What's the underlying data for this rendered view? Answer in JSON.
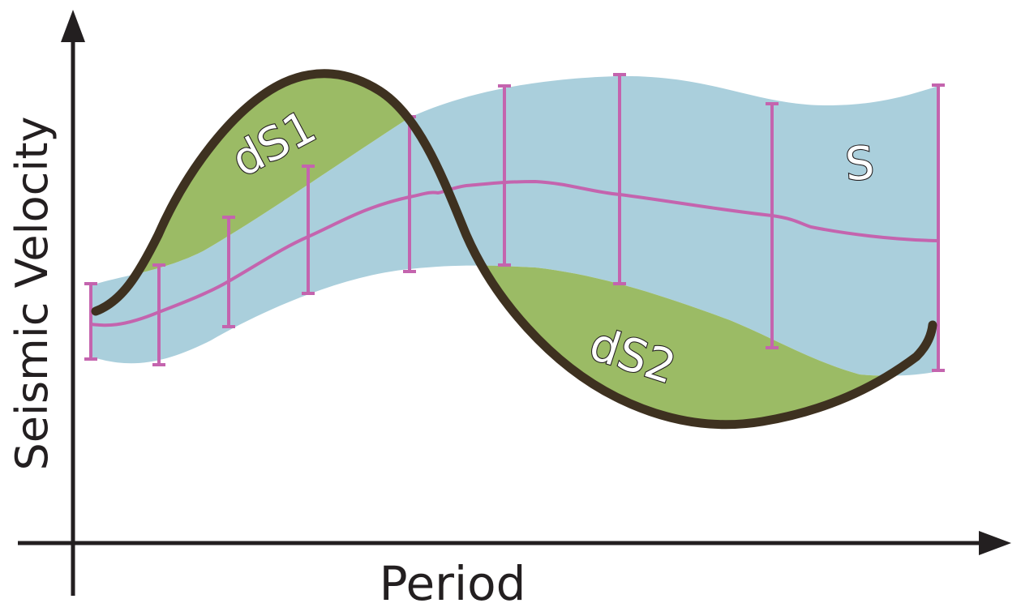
{
  "diagram": {
    "axes": {
      "x_label": "Period",
      "y_label": "Seismic Velocity"
    },
    "labels": {
      "uncertainty_band": "S",
      "region_above": "dS1",
      "region_below": "dS2"
    },
    "colors": {
      "axis": "#231f20",
      "band_fill": "#aacfdc",
      "mean_line_and_error_bars": "#c464ae",
      "observed_curve": "#3e3120",
      "difference_regions": "#9bbb65",
      "label_fill": "#ffffff",
      "label_outline": "#231f20"
    },
    "elements": [
      "uncertainty band",
      "mean curve",
      "error bars",
      "observed dispersion curve",
      "difference region above band",
      "difference region below band"
    ]
  }
}
